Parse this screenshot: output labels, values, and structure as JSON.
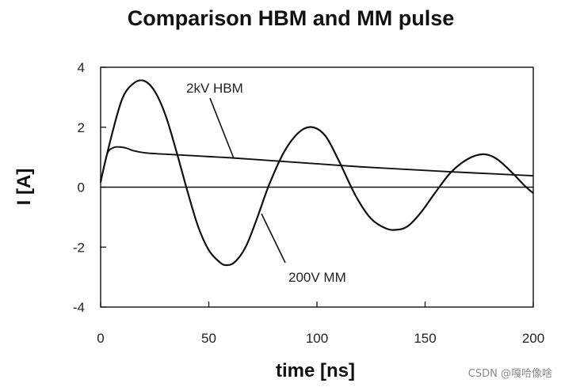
{
  "chart_data": {
    "type": "line",
    "title": "Comparison HBM and MM pulse",
    "xlabel": "time [ns]",
    "ylabel": "I  [A]",
    "xlim": [
      0,
      200
    ],
    "ylim": [
      -4,
      4
    ],
    "xticks": [
      "0",
      "50",
      "100",
      "150",
      "200"
    ],
    "yticks": [
      "4",
      "2",
      "0",
      "-2",
      "-4"
    ],
    "grid": false,
    "series": [
      {
        "name": "2kV HBM",
        "x": [
          0,
          3,
          6,
          9,
          12,
          15,
          20,
          25,
          30,
          40,
          50,
          60,
          80,
          100,
          120,
          140,
          160,
          180,
          200
        ],
        "y": [
          0.15,
          1.1,
          1.32,
          1.34,
          1.3,
          1.22,
          1.15,
          1.12,
          1.1,
          1.06,
          1.02,
          0.98,
          0.88,
          0.78,
          0.68,
          0.6,
          0.52,
          0.45,
          0.38
        ]
      },
      {
        "name": "200V MM",
        "x": [
          0,
          5,
          10,
          15,
          20,
          25,
          30,
          35,
          40,
          45,
          50,
          55,
          58,
          62,
          67,
          72,
          78,
          85,
          92,
          98,
          104,
          110,
          118,
          125,
          132,
          137,
          142,
          148,
          155,
          162,
          170,
          177,
          183,
          190,
          196,
          200
        ],
        "y": [
          0.2,
          1.7,
          2.95,
          3.45,
          3.55,
          3.2,
          2.4,
          1.2,
          -0.1,
          -1.3,
          -2.1,
          -2.5,
          -2.6,
          -2.5,
          -2.0,
          -1.1,
          0.1,
          1.2,
          1.85,
          2.0,
          1.7,
          0.9,
          -0.3,
          -1.05,
          -1.38,
          -1.42,
          -1.3,
          -0.85,
          -0.15,
          0.5,
          0.95,
          1.1,
          0.95,
          0.5,
          0.05,
          -0.2
        ]
      }
    ],
    "annotations": [
      "2kV HBM",
      "200V MM"
    ]
  },
  "watermark": "CSDN @嘎哈像啥"
}
